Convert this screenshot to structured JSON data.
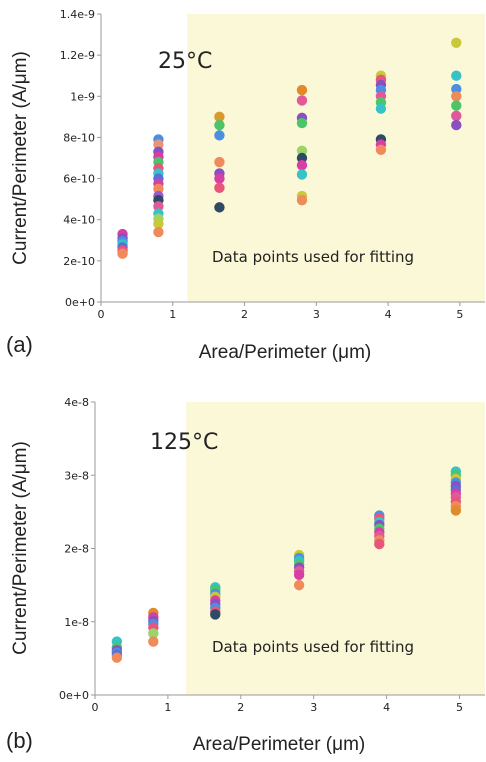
{
  "chart_data": [
    {
      "type": "scatter",
      "panel_label": "(a)",
      "annotation_temp": "25°C",
      "annotation_region": "Data points used for fitting",
      "highlight_region_x": [
        1.2,
        5.35
      ],
      "highlight_color": "#fbf8d8",
      "xlabel": "Area/Perimeter (μm)",
      "ylabel": "Current/Perimeter (A/μm)",
      "xlim": [
        0,
        5.35
      ],
      "ylim": [
        0,
        1.4e-09
      ],
      "xticks": [
        0,
        1,
        2,
        3,
        4,
        5
      ],
      "xtick_labels": [
        "0",
        "1",
        "2",
        "3",
        "4",
        "5"
      ],
      "yticks": [
        0,
        2e-10,
        4e-10,
        6e-10,
        8e-10,
        1e-09,
        1.2e-09,
        1.4e-09
      ],
      "ytick_labels": [
        "0e+0",
        "2e-10",
        "4e-10",
        "6e-10",
        "8e-10",
        "1e-9",
        "1.2e-9",
        "1.4e-9"
      ],
      "grid": false,
      "points": [
        {
          "x": 0.3,
          "y": 3.3e-10,
          "color": "#d63fa4"
        },
        {
          "x": 0.3,
          "y": 3.1e-10,
          "color": "#8a4fc0"
        },
        {
          "x": 0.3,
          "y": 2.95e-10,
          "color": "#4a8fe0"
        },
        {
          "x": 0.3,
          "y": 2.8e-10,
          "color": "#36c3c8"
        },
        {
          "x": 0.3,
          "y": 2.65e-10,
          "color": "#5b6fd6"
        },
        {
          "x": 0.3,
          "y": 2.5e-10,
          "color": "#e8557a"
        },
        {
          "x": 0.3,
          "y": 2.35e-10,
          "color": "#f08a5a"
        },
        {
          "x": 0.8,
          "y": 7.9e-10,
          "color": "#4a8fe0"
        },
        {
          "x": 0.8,
          "y": 7.65e-10,
          "color": "#e8947a"
        },
        {
          "x": 0.8,
          "y": 7.3e-10,
          "color": "#8a4fc0"
        },
        {
          "x": 0.8,
          "y": 7.05e-10,
          "color": "#d63fa4"
        },
        {
          "x": 0.8,
          "y": 6.8e-10,
          "color": "#4bc46a"
        },
        {
          "x": 0.8,
          "y": 6.5e-10,
          "color": "#e8557a"
        },
        {
          "x": 0.8,
          "y": 6.25e-10,
          "color": "#36c3c8"
        },
        {
          "x": 0.8,
          "y": 6e-10,
          "color": "#5b6fd6"
        },
        {
          "x": 0.8,
          "y": 5.75e-10,
          "color": "#d63fa4"
        },
        {
          "x": 0.8,
          "y": 5.5e-10,
          "color": "#f08a5a"
        },
        {
          "x": 0.8,
          "y": 5.15e-10,
          "color": "#9b59d0"
        },
        {
          "x": 0.8,
          "y": 4.95e-10,
          "color": "#2e4a66"
        },
        {
          "x": 0.8,
          "y": 4.65e-10,
          "color": "#e05a9a"
        },
        {
          "x": 0.8,
          "y": 4.3e-10,
          "color": "#36c3c8"
        },
        {
          "x": 0.8,
          "y": 4.05e-10,
          "color": "#9ed36a"
        },
        {
          "x": 0.8,
          "y": 3.8e-10,
          "color": "#c9c83a"
        },
        {
          "x": 0.8,
          "y": 3.4e-10,
          "color": "#f08a5a"
        },
        {
          "x": 1.65,
          "y": 9e-10,
          "color": "#d89a2a"
        },
        {
          "x": 1.65,
          "y": 8.6e-10,
          "color": "#4bc46a"
        },
        {
          "x": 1.65,
          "y": 8.1e-10,
          "color": "#4a8fe0"
        },
        {
          "x": 1.65,
          "y": 6.8e-10,
          "color": "#f08a5a"
        },
        {
          "x": 1.65,
          "y": 6.25e-10,
          "color": "#8a4fc0"
        },
        {
          "x": 1.65,
          "y": 6e-10,
          "color": "#d63fa4"
        },
        {
          "x": 1.65,
          "y": 5.55e-10,
          "color": "#e8557a"
        },
        {
          "x": 1.65,
          "y": 4.6e-10,
          "color": "#2e4a66"
        },
        {
          "x": 2.8,
          "y": 1.03e-09,
          "color": "#e08a2a"
        },
        {
          "x": 2.8,
          "y": 9.8e-10,
          "color": "#e05a9a"
        },
        {
          "x": 2.8,
          "y": 8.95e-10,
          "color": "#8a4fc0"
        },
        {
          "x": 2.8,
          "y": 8.7e-10,
          "color": "#4bc46a"
        },
        {
          "x": 2.8,
          "y": 7.35e-10,
          "color": "#9ed36a"
        },
        {
          "x": 2.8,
          "y": 7e-10,
          "color": "#2e4a66"
        },
        {
          "x": 2.8,
          "y": 6.65e-10,
          "color": "#d63fa4"
        },
        {
          "x": 2.8,
          "y": 6.2e-10,
          "color": "#36c3c8"
        },
        {
          "x": 2.8,
          "y": 5.15e-10,
          "color": "#c9c83a"
        },
        {
          "x": 2.8,
          "y": 4.95e-10,
          "color": "#f08a5a"
        },
        {
          "x": 3.9,
          "y": 1.1e-09,
          "color": "#c9c83a"
        },
        {
          "x": 3.9,
          "y": 1.08e-09,
          "color": "#e8557a"
        },
        {
          "x": 3.9,
          "y": 1.055e-09,
          "color": "#8a4fc0"
        },
        {
          "x": 3.9,
          "y": 1.03e-09,
          "color": "#4a8fe0"
        },
        {
          "x": 3.9,
          "y": 1e-09,
          "color": "#e05a9a"
        },
        {
          "x": 3.9,
          "y": 9.7e-10,
          "color": "#4bc46a"
        },
        {
          "x": 3.9,
          "y": 9.4e-10,
          "color": "#36c3c8"
        },
        {
          "x": 3.9,
          "y": 7.9e-10,
          "color": "#2e4a66"
        },
        {
          "x": 3.9,
          "y": 7.65e-10,
          "color": "#d63fa4"
        },
        {
          "x": 3.9,
          "y": 7.4e-10,
          "color": "#f08a5a"
        },
        {
          "x": 4.95,
          "y": 1.26e-09,
          "color": "#c9c83a"
        },
        {
          "x": 4.95,
          "y": 1.1e-09,
          "color": "#36c3c8"
        },
        {
          "x": 4.95,
          "y": 1.035e-09,
          "color": "#4a8fe0"
        },
        {
          "x": 4.95,
          "y": 1e-09,
          "color": "#f08a5a"
        },
        {
          "x": 4.95,
          "y": 9.55e-10,
          "color": "#4bc46a"
        },
        {
          "x": 4.95,
          "y": 9.05e-10,
          "color": "#e05a9a"
        },
        {
          "x": 4.95,
          "y": 8.6e-10,
          "color": "#8a4fc0"
        }
      ]
    },
    {
      "type": "scatter",
      "panel_label": "(b)",
      "annotation_temp": "125°C",
      "annotation_region": "Data points used for fitting",
      "highlight_region_x": [
        1.25,
        5.35
      ],
      "highlight_color": "#fbf8d8",
      "xlabel": "Area/Perimeter (μm)",
      "ylabel": "Current/Perimeter (A/μm)",
      "xlim": [
        0,
        5.35
      ],
      "ylim": [
        0,
        4e-08
      ],
      "xticks": [
        0,
        1,
        2,
        3,
        4,
        5
      ],
      "xtick_labels": [
        "0",
        "1",
        "2",
        "3",
        "4",
        "5"
      ],
      "yticks": [
        0,
        1e-08,
        2e-08,
        3e-08,
        4e-08
      ],
      "ytick_labels": [
        "0e+0",
        "1e-8",
        "2e-8",
        "3e-8",
        "4e-8"
      ],
      "grid": false,
      "points": [
        {
          "x": 0.3,
          "y": 7.3e-09,
          "color": "#36c3c8"
        },
        {
          "x": 0.3,
          "y": 6.5e-09,
          "color": "#4bc46a"
        },
        {
          "x": 0.3,
          "y": 6.1e-09,
          "color": "#8a4fc0"
        },
        {
          "x": 0.3,
          "y": 5.8e-09,
          "color": "#4a8fe0"
        },
        {
          "x": 0.3,
          "y": 5.5e-09,
          "color": "#5b6fd6"
        },
        {
          "x": 0.3,
          "y": 5.1e-09,
          "color": "#f08a5a"
        },
        {
          "x": 0.8,
          "y": 1.12e-08,
          "color": "#e08a2a"
        },
        {
          "x": 0.8,
          "y": 1.06e-08,
          "color": "#d63fa4"
        },
        {
          "x": 0.8,
          "y": 1.01e-08,
          "color": "#8a4fc0"
        },
        {
          "x": 0.8,
          "y": 9.7e-09,
          "color": "#4a8fe0"
        },
        {
          "x": 0.8,
          "y": 9.2e-09,
          "color": "#e8557a"
        },
        {
          "x": 0.8,
          "y": 8.4e-09,
          "color": "#9ed36a"
        },
        {
          "x": 0.8,
          "y": 7.3e-09,
          "color": "#f08a5a"
        },
        {
          "x": 1.65,
          "y": 1.47e-08,
          "color": "#36c3c8"
        },
        {
          "x": 1.65,
          "y": 1.43e-08,
          "color": "#4bc46a"
        },
        {
          "x": 1.65,
          "y": 1.38e-08,
          "color": "#4a8fe0"
        },
        {
          "x": 1.65,
          "y": 1.34e-08,
          "color": "#c9c83a"
        },
        {
          "x": 1.65,
          "y": 1.29e-08,
          "color": "#d63fa4"
        },
        {
          "x": 1.65,
          "y": 1.24e-08,
          "color": "#8a4fc0"
        },
        {
          "x": 1.65,
          "y": 1.19e-08,
          "color": "#4a8fe0"
        },
        {
          "x": 1.65,
          "y": 1.14e-08,
          "color": "#e8557a"
        },
        {
          "x": 1.65,
          "y": 1.1e-08,
          "color": "#2e4a66"
        },
        {
          "x": 2.8,
          "y": 1.91e-08,
          "color": "#c9c83a"
        },
        {
          "x": 2.8,
          "y": 1.87e-08,
          "color": "#4a8fe0"
        },
        {
          "x": 2.8,
          "y": 1.83e-08,
          "color": "#36c3c8"
        },
        {
          "x": 2.8,
          "y": 1.78e-08,
          "color": "#4bc46a"
        },
        {
          "x": 2.8,
          "y": 1.74e-08,
          "color": "#8a4fc0"
        },
        {
          "x": 2.8,
          "y": 1.69e-08,
          "color": "#e05a9a"
        },
        {
          "x": 2.8,
          "y": 1.64e-08,
          "color": "#d63fa4"
        },
        {
          "x": 2.8,
          "y": 1.5e-08,
          "color": "#f08a5a"
        },
        {
          "x": 3.9,
          "y": 2.45e-08,
          "color": "#4a8fe0"
        },
        {
          "x": 3.9,
          "y": 2.41e-08,
          "color": "#e8557a"
        },
        {
          "x": 3.9,
          "y": 2.36e-08,
          "color": "#36c3c8"
        },
        {
          "x": 3.9,
          "y": 2.32e-08,
          "color": "#8a4fc0"
        },
        {
          "x": 3.9,
          "y": 2.27e-08,
          "color": "#4bc46a"
        },
        {
          "x": 3.9,
          "y": 2.22e-08,
          "color": "#d63fa4"
        },
        {
          "x": 3.9,
          "y": 2.17e-08,
          "color": "#e05a9a"
        },
        {
          "x": 3.9,
          "y": 2.11e-08,
          "color": "#f08a5a"
        },
        {
          "x": 3.9,
          "y": 2.06e-08,
          "color": "#e8557a"
        },
        {
          "x": 4.95,
          "y": 3.05e-08,
          "color": "#36c3c8"
        },
        {
          "x": 4.95,
          "y": 3e-08,
          "color": "#4bc46a"
        },
        {
          "x": 4.95,
          "y": 2.95e-08,
          "color": "#c9c83a"
        },
        {
          "x": 4.95,
          "y": 2.9e-08,
          "color": "#4a8fe0"
        },
        {
          "x": 4.95,
          "y": 2.85e-08,
          "color": "#8a4fc0"
        },
        {
          "x": 4.95,
          "y": 2.8e-08,
          "color": "#5b6fd6"
        },
        {
          "x": 4.95,
          "y": 2.75e-08,
          "color": "#d63fa4"
        },
        {
          "x": 4.95,
          "y": 2.7e-08,
          "color": "#e05a9a"
        },
        {
          "x": 4.95,
          "y": 2.64e-08,
          "color": "#e8557a"
        },
        {
          "x": 4.95,
          "y": 2.58e-08,
          "color": "#f08a5a"
        },
        {
          "x": 4.95,
          "y": 2.52e-08,
          "color": "#e08a2a"
        }
      ]
    }
  ]
}
